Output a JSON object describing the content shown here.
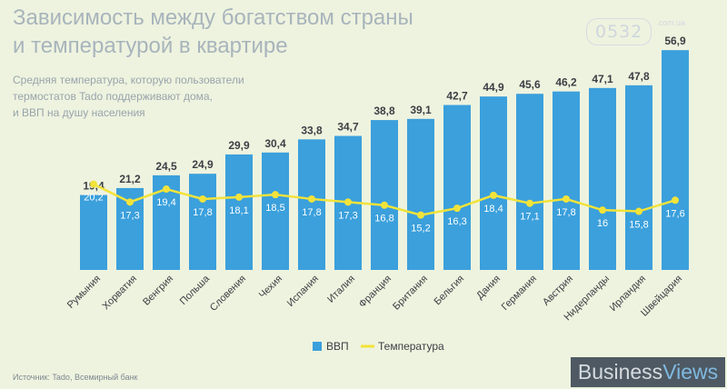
{
  "title": "Зависимость между богатством страны\nи температурой в квартире",
  "subtitle": "Средняя температура, которую пользователи\nтермостатов Tado поддерживают дома,\nи ВВП на душу населения",
  "source": "Источник: Tado, Всемирный банк",
  "brand": {
    "part1": "Business",
    "part2": "Views"
  },
  "watermark": {
    "badge": "0532",
    "site": ".com.ua"
  },
  "colors": {
    "bar": "#3ba0dc",
    "line": "#f2e33a",
    "background": "#eef3df"
  },
  "chart_data": {
    "type": "bar",
    "categories": [
      "Румыния",
      "Хорватия",
      "Венгрия",
      "Польша",
      "Словения",
      "Чехия",
      "Испания",
      "Италия",
      "Франция",
      "Британия",
      "Бельгия",
      "Дания",
      "Германия",
      "Австрия",
      "Нидерланды",
      "Ирландия",
      "Швейцария"
    ],
    "series": [
      {
        "name": "ВВП",
        "type": "bar",
        "values": [
          19.4,
          21.2,
          24.5,
          24.9,
          29.9,
          30.4,
          33.8,
          34.7,
          38.8,
          39.1,
          42.7,
          44.9,
          45.6,
          46.2,
          47.1,
          47.8,
          56.9
        ]
      },
      {
        "name": "Температура",
        "type": "line",
        "values": [
          20.2,
          17.3,
          19.4,
          17.8,
          18.1,
          18.5,
          17.8,
          17.3,
          16.8,
          15.2,
          16.3,
          18.4,
          17.1,
          17.8,
          16,
          15.8,
          17.6
        ]
      }
    ],
    "legend": "bottom-center",
    "grid": false
  }
}
